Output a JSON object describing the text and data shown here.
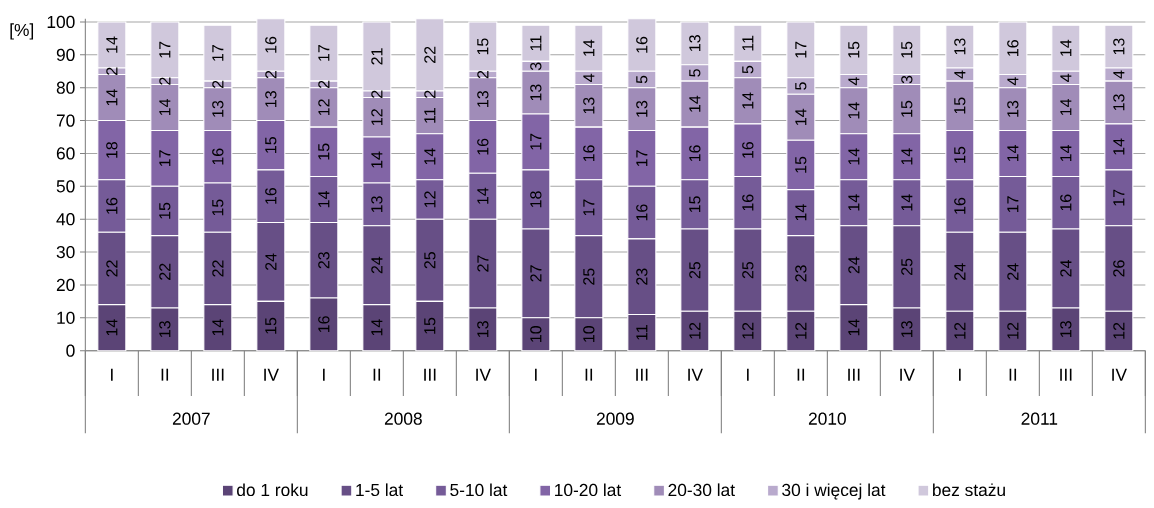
{
  "chart_data": {
    "type": "bar",
    "stacked": true,
    "ylabel": "[%]",
    "categories": [
      "I",
      "II",
      "III",
      "IV",
      "I",
      "II",
      "III",
      "IV",
      "I",
      "II",
      "III",
      "IV",
      "I",
      "II",
      "III",
      "IV",
      "I",
      "II",
      "III",
      "IV"
    ],
    "annotations": [
      "2007",
      "2008",
      "2009",
      "2010",
      "2011"
    ],
    "ylim": [
      0,
      101
    ],
    "yticks": [
      0,
      10,
      20,
      30,
      40,
      50,
      60,
      70,
      80,
      90,
      100
    ],
    "grid": "y",
    "legend": "bottom",
    "data_labels": true,
    "series": [
      {
        "name": "do 1 roku",
        "color": "#5b4476",
        "values": [
          14,
          13,
          14,
          15,
          16,
          14,
          15,
          13,
          10,
          10,
          11,
          12,
          12,
          12,
          14,
          13,
          12,
          12,
          13,
          12
        ]
      },
      {
        "name": "1-5 lat",
        "color": "#674f86",
        "values": [
          22,
          22,
          22,
          24,
          23,
          24,
          25,
          27,
          27,
          25,
          23,
          25,
          25,
          23,
          24,
          25,
          24,
          24,
          24,
          26
        ]
      },
      {
        "name": "5-10 lat",
        "color": "#755b98",
        "values": [
          16,
          15,
          15,
          16,
          14,
          13,
          12,
          14,
          18,
          17,
          16,
          15,
          16,
          14,
          14,
          14,
          16,
          17,
          16,
          17
        ]
      },
      {
        "name": "10-20 lat",
        "color": "#8265a6",
        "values": [
          18,
          17,
          16,
          15,
          15,
          14,
          14,
          16,
          17,
          16,
          17,
          16,
          16,
          15,
          14,
          14,
          15,
          14,
          14,
          14
        ]
      },
      {
        "name": "20-30 lat",
        "color": "#a08cb8",
        "values": [
          14,
          14,
          13,
          13,
          12,
          12,
          11,
          13,
          13,
          13,
          13,
          14,
          14,
          14,
          14,
          15,
          15,
          13,
          14,
          13
        ]
      },
      {
        "name": "30 i więcej lat",
        "color": "#b9aacd",
        "values": [
          2,
          2,
          2,
          2,
          2,
          2,
          2,
          2,
          3,
          4,
          5,
          5,
          5,
          5,
          4,
          3,
          4,
          4,
          4,
          4
        ]
      },
      {
        "name": "bez stażu",
        "color": "#d0c8dc",
        "values": [
          14,
          17,
          17,
          16,
          17,
          21,
          22,
          15,
          11,
          14,
          16,
          13,
          11,
          17,
          15,
          15,
          13,
          16,
          14,
          13
        ]
      }
    ]
  }
}
